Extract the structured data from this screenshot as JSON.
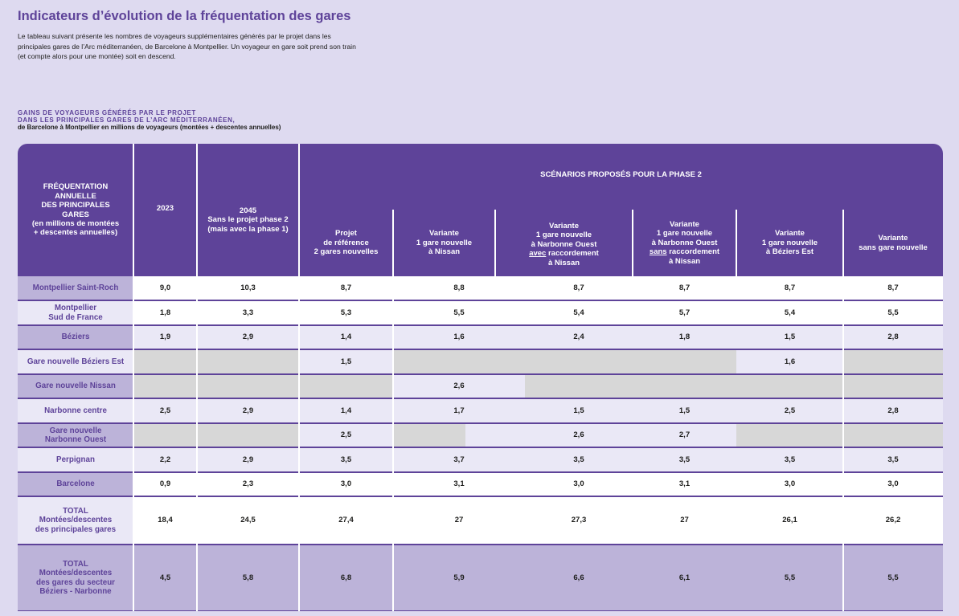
{
  "page": {
    "title": "Indicateurs d’évolution de la fréquentation des gares",
    "intro": "Le tableau suivant présente les nombres de voyageurs supplémentaires générés par le projet dans les principales gares de l’Arc méditerranéen, de Barcelone à Montpellier. Un voyageur en gare soit prend son train (et compte alors pour une montée) soit en descend.",
    "caption_line1": "GAINS DE VOYAGEURS GÉNÉRÉS PAR LE PROJET",
    "caption_line2": "DANS LES PRINCIPALES GARES DE L’ARC MÉDITERRANÉEN,",
    "caption_line3": "de Barcelone à Montpellier en millions de voyageurs (montées + descentes annuelles)"
  },
  "colors": {
    "header": "#5e4399",
    "background": "#dedaf0",
    "row_light": "#eae8f6",
    "row_mid": "#bcb3d9",
    "grey": "#d7d7d7"
  },
  "header": {
    "c0": {
      "l1": "FRÉQUENTATION",
      "l2": "ANNUELLE",
      "l3": "DES PRINCIPALES",
      "l4": "GARES",
      "l5": "(en millions de montées",
      "l6": "+ descentes annuelles)"
    },
    "c1": "2023",
    "c2": {
      "l1": "2045",
      "l2": "Sans le projet phase 2",
      "l3": "(mais avec la phase 1)"
    },
    "scenarios": "SCÉNARIOS PROPOSÉS POUR LA PHASE 2",
    "s1": {
      "l1": "Projet",
      "l2": "de référence",
      "l3": "2 gares nouvelles"
    },
    "s2": {
      "l1": "Variante",
      "l2": "1 gare nouvelle",
      "l3": "à Nissan"
    },
    "s3": {
      "l1": "Variante",
      "l2": "1 gare nouvelle",
      "l3": "à Narbonne Ouest",
      "l4a": "avec",
      "l4b": " raccordement",
      "l5": "à Nissan"
    },
    "s4": {
      "l1": "Variante",
      "l2": "1 gare nouvelle",
      "l3": "à Narbonne Ouest",
      "l4a": "sans",
      "l4b": " raccordement",
      "l5": "à Nissan"
    },
    "s5": {
      "l1": "Variante",
      "l2": "1 gare nouvelle",
      "l3": "à Béziers Est"
    },
    "s6": {
      "l1": "Variante",
      "l2": "sans gare nouvelle"
    }
  },
  "rows": [
    {
      "label": [
        "Montpellier Saint-Roch"
      ],
      "values": [
        "9,0",
        "10,3",
        "8,7",
        "8,8",
        "8,7",
        "8,7",
        "8,7",
        "8,7"
      ]
    },
    {
      "label": [
        "Montpellier",
        "Sud de France"
      ],
      "values": [
        "1,8",
        "3,3",
        "5,3",
        "5,5",
        "5,4",
        "5,7",
        "5,4",
        "5,5"
      ]
    },
    {
      "label": [
        "Béziers"
      ],
      "values": [
        "1,9",
        "2,9",
        "1,4",
        "1,6",
        "2,4",
        "1,8",
        "1,5",
        "2,8"
      ]
    },
    {
      "label": [
        "Gare nouvelle Béziers Est"
      ],
      "values": [
        "",
        "",
        "1,5",
        "",
        "",
        "",
        "1,6",
        ""
      ]
    },
    {
      "label": [
        "Gare nouvelle Nissan"
      ],
      "values": [
        "",
        "",
        "",
        "2,6",
        "",
        "",
        "",
        ""
      ]
    },
    {
      "label": [
        "Narbonne centre"
      ],
      "values": [
        "2,5",
        "2,9",
        "1,4",
        "1,7",
        "1,5",
        "1,5",
        "2,5",
        "2,8"
      ]
    },
    {
      "label": [
        "Gare nouvelle",
        "Narbonne Ouest"
      ],
      "values": [
        "",
        "",
        "2,5",
        "",
        "2,6",
        "2,7",
        "",
        ""
      ]
    },
    {
      "label": [
        "Perpignan"
      ],
      "values": [
        "2,2",
        "2,9",
        "3,5",
        "3,7",
        "3,5",
        "3,5",
        "3,5",
        "3,5"
      ]
    },
    {
      "label": [
        "Barcelone"
      ],
      "values": [
        "0,9",
        "2,3",
        "3,0",
        "3,1",
        "3,0",
        "3,1",
        "3,0",
        "3,0"
      ]
    },
    {
      "label": [
        "TOTAL",
        "Montées/descentes",
        "des principales gares"
      ],
      "values": [
        "18,4",
        "24,5",
        "27,4",
        "27",
        "27,3",
        "27",
        "26,1",
        "26,2"
      ]
    },
    {
      "label": [
        "TOTAL",
        "Montées/descentes",
        "des gares du secteur",
        "Béziers - Narbonne"
      ],
      "values": [
        "4,5",
        "5,8",
        "6,8",
        "5,9",
        "6,6",
        "6,1",
        "5,5",
        "5,5"
      ]
    }
  ]
}
